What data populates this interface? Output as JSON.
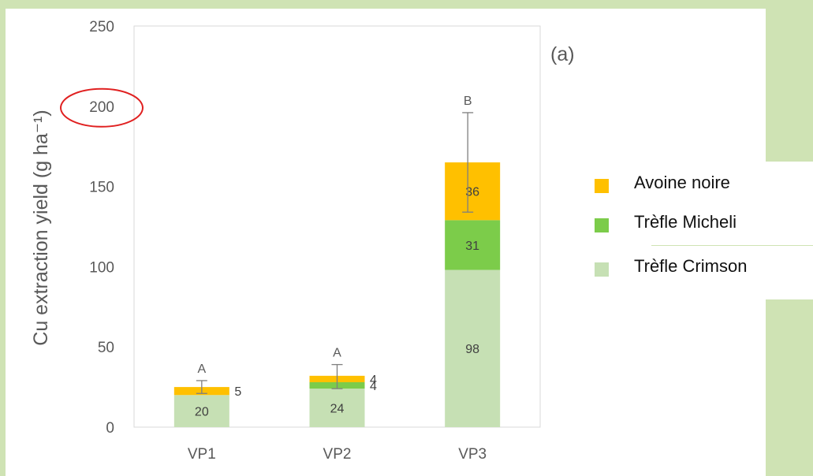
{
  "chart_data": {
    "type": "bar",
    "stacked": true,
    "panel_label": "(a)",
    "title": "",
    "xlabel": "",
    "ylabel": "Cu extraction yield (g ha⁻¹)",
    "ylim": [
      0,
      250
    ],
    "yticks": [
      0,
      50,
      100,
      150,
      200,
      250
    ],
    "grid": false,
    "legend_position": "right",
    "categories": [
      "VP1",
      "VP2",
      "VP3"
    ],
    "series": [
      {
        "name": "Trèfle Crimson",
        "color": "#c6e0b4",
        "values": [
          20,
          24,
          98
        ],
        "labels": [
          "20",
          "24",
          "98"
        ]
      },
      {
        "name": "Trèfle Micheli",
        "color": "#7ccc4a",
        "values": [
          0,
          4,
          31
        ],
        "labels": [
          "",
          "4",
          "31"
        ]
      },
      {
        "name": "Avoine noire",
        "color": "#ffc000",
        "values": [
          5,
          4,
          36
        ],
        "labels": [
          "5",
          "4",
          "36"
        ]
      }
    ],
    "error_bars": [
      {
        "category": "VP1",
        "low": 21,
        "high": 29
      },
      {
        "category": "VP2",
        "low": 24,
        "high": 39
      },
      {
        "category": "VP3",
        "low": 134,
        "high": 196
      }
    ],
    "significance_letters": [
      "A",
      "A",
      "B"
    ],
    "annotation": {
      "type": "ellipse",
      "target_tick": 200,
      "color": "#e02020"
    }
  }
}
